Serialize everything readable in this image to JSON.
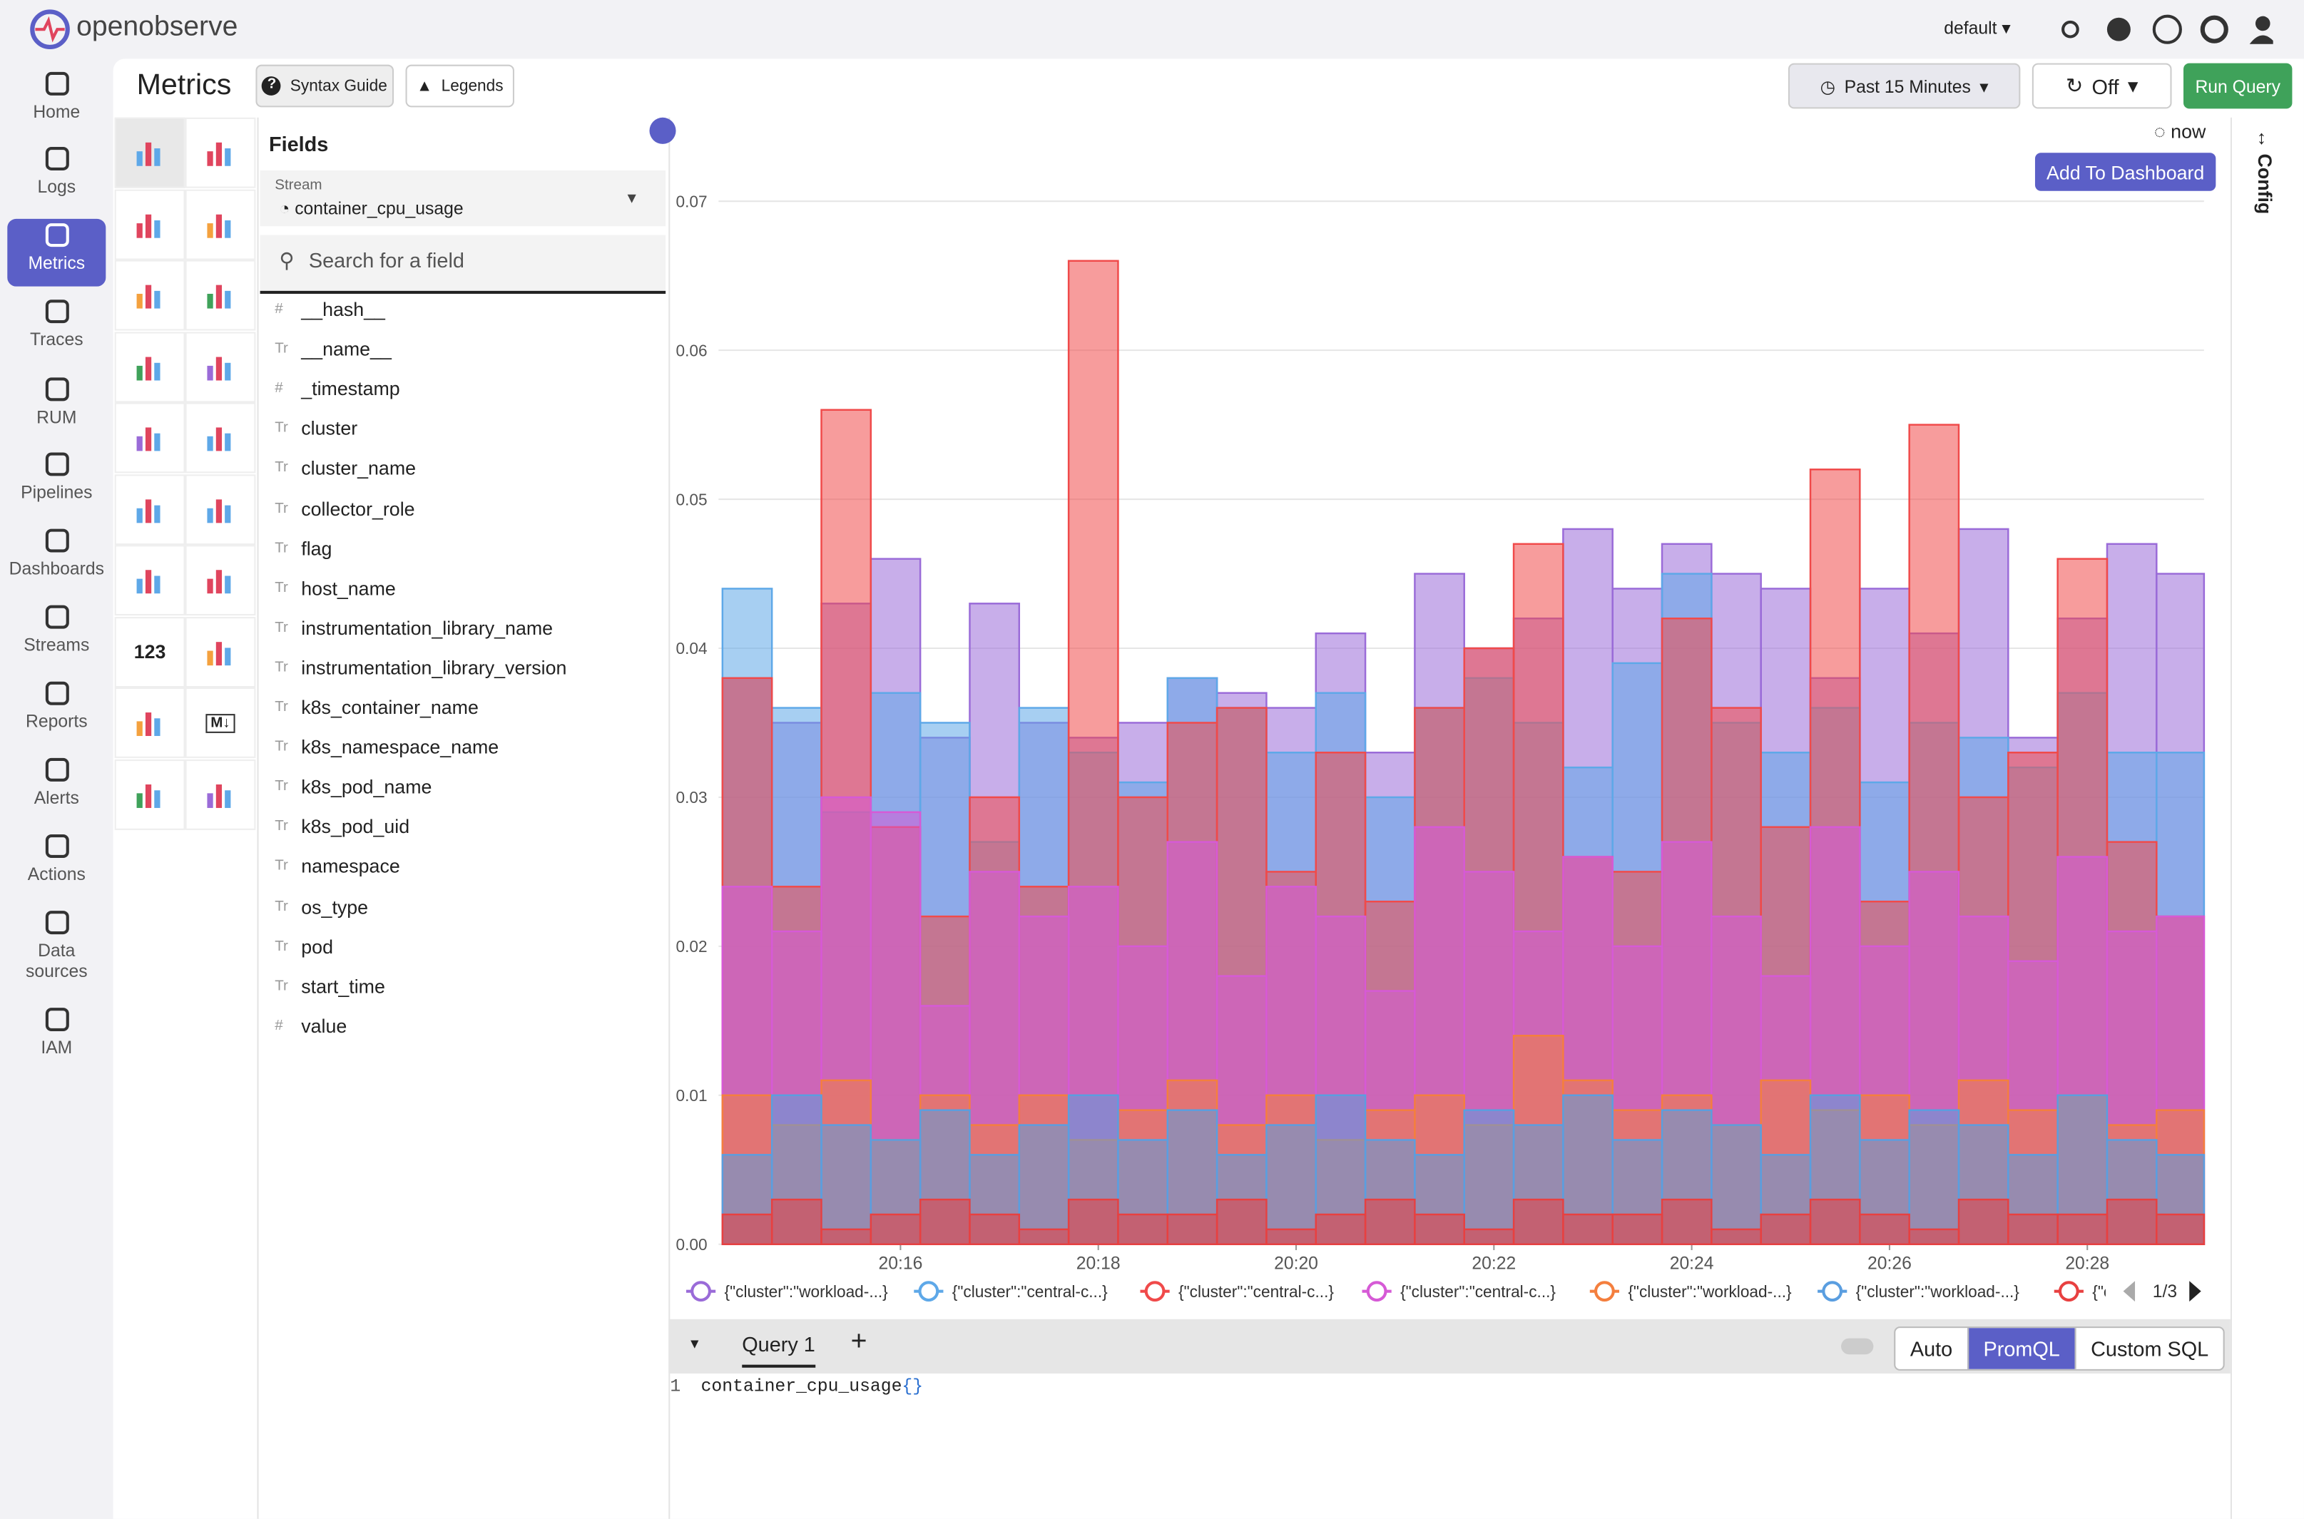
{
  "header": {
    "logo": "openobserve",
    "org": "default"
  },
  "nav": [
    "Home",
    "Logs",
    "Metrics",
    "Traces",
    "RUM",
    "Pipelines",
    "Dashboards",
    "Streams",
    "Reports",
    "Alerts",
    "Actions",
    "Data sources",
    "IAM"
  ],
  "toolbar": {
    "title": "Metrics",
    "syntax_guide": "Syntax Guide",
    "legends": "Legends",
    "time_range": "Past 15 Minutes",
    "refresh": "Off",
    "run": "Run Query"
  },
  "chart_types": {
    "number_icon": "123",
    "markdown_icon": "M↓"
  },
  "fields_panel": {
    "title": "Fields",
    "stream_label": "Stream",
    "stream": "container_cpu_usage",
    "search": "Search for a field",
    "fields": [
      {
        "icon": "#",
        "name": "__hash__"
      },
      {
        "icon": "Tr",
        "name": "__name__"
      },
      {
        "icon": "#",
        "name": "_timestamp"
      },
      {
        "icon": "Tr",
        "name": "cluster"
      },
      {
        "icon": "Tr",
        "name": "cluster_name"
      },
      {
        "icon": "Tr",
        "name": "collector_role"
      },
      {
        "icon": "Tr",
        "name": "flag"
      },
      {
        "icon": "Tr",
        "name": "host_name"
      },
      {
        "icon": "Tr",
        "name": "instrumentation_library_name"
      },
      {
        "icon": "Tr",
        "name": "instrumentation_library_version"
      },
      {
        "icon": "Tr",
        "name": "k8s_container_name"
      },
      {
        "icon": "Tr",
        "name": "k8s_namespace_name"
      },
      {
        "icon": "Tr",
        "name": "k8s_pod_name"
      },
      {
        "icon": "Tr",
        "name": "k8s_pod_uid"
      },
      {
        "icon": "Tr",
        "name": "namespace"
      },
      {
        "icon": "Tr",
        "name": "os_type"
      },
      {
        "icon": "Tr",
        "name": "pod"
      },
      {
        "icon": "Tr",
        "name": "start_time"
      },
      {
        "icon": "#",
        "name": "value"
      }
    ]
  },
  "chart_header": {
    "now": "now",
    "add": "Add To Dashboard",
    "config": "Config",
    "legend_page": "1/3"
  },
  "query": {
    "tab": "Query 1",
    "modes": [
      "Auto",
      "PromQL",
      "Custom SQL"
    ],
    "line": "1",
    "code": "container_cpu_usage",
    "code_braces": "{}"
  },
  "chart_data": {
    "type": "area",
    "step": true,
    "x": [
      14.2,
      14.7,
      15.2,
      15.7,
      16.2,
      16.7,
      17.2,
      17.7,
      18.2,
      18.7,
      19.2,
      19.7,
      20.2,
      20.7,
      21.2,
      21.7,
      22.2,
      22.7,
      23.2,
      23.7,
      24.2,
      24.7,
      25.2,
      25.7,
      26.2,
      26.7,
      27.2,
      27.7,
      28.2,
      28.7
    ],
    "xlim": [
      14.16,
      29.18
    ],
    "xticks": [
      {
        "value": 16,
        "label": "20:16"
      },
      {
        "value": 18,
        "label": "20:18"
      },
      {
        "value": 20,
        "label": "20:20"
      },
      {
        "value": 22,
        "label": "20:22"
      },
      {
        "value": 24,
        "label": "20:24"
      },
      {
        "value": 26,
        "label": "20:26"
      },
      {
        "value": 28,
        "label": "20:28"
      }
    ],
    "ylim": [
      0,
      0.07
    ],
    "yticks": [
      {
        "value": 0,
        "label": "0.00"
      },
      0.01,
      0.02,
      0.03,
      0.04,
      0.05,
      0.06,
      0.07
    ],
    "grid": true,
    "series": [
      {
        "name": "{\"cluster\":\"workload-...}",
        "color": "#9a6bd8",
        "values": [
          0.038,
          0.035,
          0.043,
          0.046,
          0.034,
          0.043,
          0.035,
          0.034,
          0.035,
          0.038,
          0.037,
          0.036,
          0.041,
          0.033,
          0.045,
          0.04,
          0.042,
          0.048,
          0.044,
          0.047,
          0.045,
          0.044,
          0.038,
          0.044,
          0.041,
          0.048,
          0.034,
          0.042,
          0.047,
          0.045
        ]
      },
      {
        "name": "{\"cluster\":\"central-c...}",
        "color": "#5ea8e8",
        "values": [
          0.044,
          0.036,
          0.029,
          0.037,
          0.035,
          0.027,
          0.036,
          0.033,
          0.031,
          0.038,
          0.036,
          0.033,
          0.037,
          0.03,
          0.036,
          0.038,
          0.035,
          0.032,
          0.039,
          0.045,
          0.035,
          0.033,
          0.036,
          0.031,
          0.035,
          0.034,
          0.032,
          0.037,
          0.033,
          0.033
        ]
      },
      {
        "name": "{\"cluster\":\"central-c...}",
        "color": "#f04a4a",
        "values": [
          0.038,
          0.024,
          0.056,
          0.028,
          0.022,
          0.03,
          0.024,
          0.066,
          0.03,
          0.035,
          0.036,
          0.025,
          0.033,
          0.023,
          0.036,
          0.04,
          0.047,
          0.026,
          0.025,
          0.042,
          0.036,
          0.028,
          0.052,
          0.023,
          0.055,
          0.03,
          0.033,
          0.046,
          0.027,
          0.022
        ]
      },
      {
        "name": "{\"cluster\":\"central-c...}",
        "color": "#d65ad6",
        "values": [
          0.024,
          0.021,
          0.03,
          0.029,
          0.016,
          0.025,
          0.022,
          0.024,
          0.02,
          0.027,
          0.018,
          0.024,
          0.022,
          0.017,
          0.028,
          0.025,
          0.021,
          0.026,
          0.02,
          0.027,
          0.022,
          0.018,
          0.028,
          0.02,
          0.025,
          0.022,
          0.019,
          0.026,
          0.021,
          0.022
        ]
      },
      {
        "name": "{\"cluster\":\"workload-...}",
        "color": "#f47f3e",
        "values": [
          0.01,
          0.008,
          0.011,
          0.007,
          0.01,
          0.008,
          0.01,
          0.007,
          0.009,
          0.011,
          0.008,
          0.01,
          0.007,
          0.009,
          0.01,
          0.008,
          0.014,
          0.011,
          0.009,
          0.01,
          0.008,
          0.011,
          0.009,
          0.01,
          0.008,
          0.011,
          0.009,
          0.01,
          0.008,
          0.009
        ]
      },
      {
        "name": "{\"cluster\":\"workload-...}",
        "color": "#5a9ee0",
        "values": [
          0.006,
          0.01,
          0.008,
          0.007,
          0.009,
          0.006,
          0.008,
          0.01,
          0.007,
          0.009,
          0.006,
          0.008,
          0.01,
          0.007,
          0.006,
          0.009,
          0.008,
          0.01,
          0.007,
          0.009,
          0.008,
          0.006,
          0.01,
          0.007,
          0.009,
          0.008,
          0.006,
          0.01,
          0.007,
          0.006
        ]
      },
      {
        "name": "{\"c",
        "color": "#e84040",
        "values": [
          0.002,
          0.003,
          0.001,
          0.002,
          0.003,
          0.002,
          0.001,
          0.003,
          0.002,
          0.002,
          0.003,
          0.001,
          0.002,
          0.003,
          0.002,
          0.001,
          0.003,
          0.002,
          0.002,
          0.003,
          0.001,
          0.002,
          0.003,
          0.002,
          0.001,
          0.003,
          0.002,
          0.002,
          0.003,
          0.002
        ]
      }
    ]
  }
}
